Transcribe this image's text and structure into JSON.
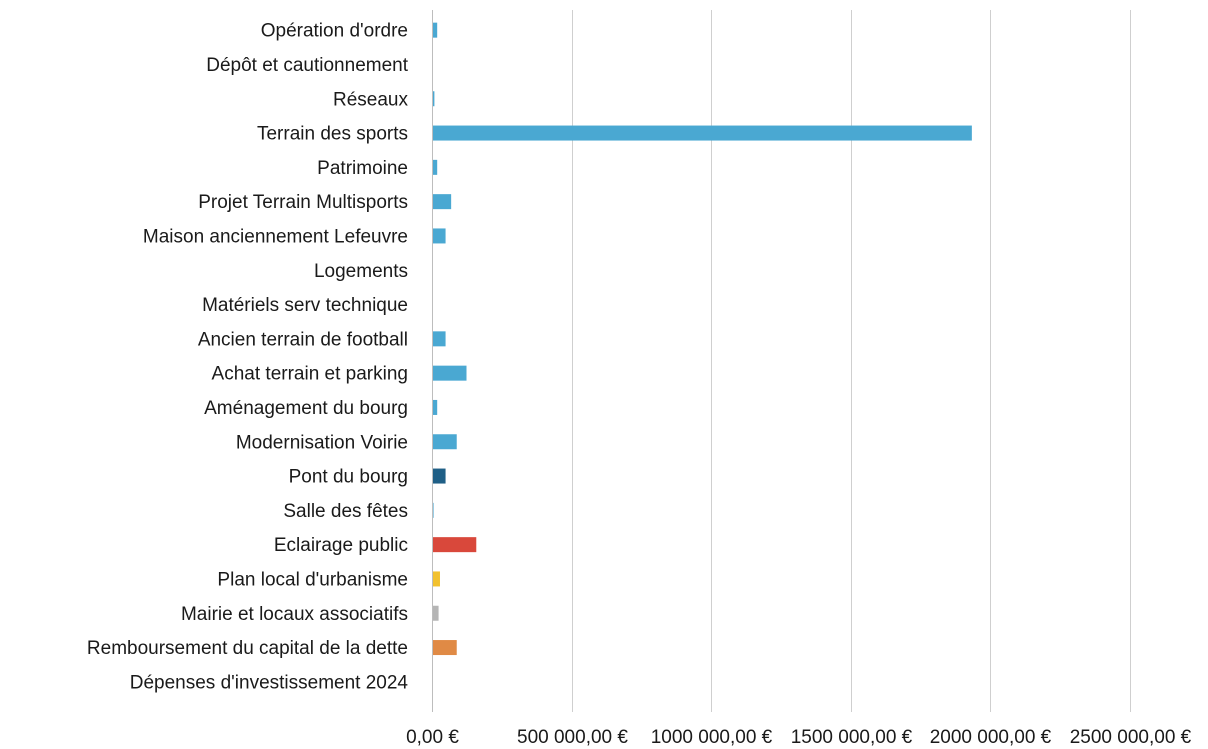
{
  "chart_data": {
    "type": "bar",
    "orientation": "horizontal",
    "categories": [
      "Opération d'ordre",
      "Dépôt et cautionnement",
      "Réseaux",
      "Terrain des sports",
      "Patrimoine",
      "Projet Terrain Multisports",
      "Maison anciennement Lefeuvre",
      "Logements",
      "Matériels serv technique",
      "Ancien terrain de football",
      "Achat terrain et parking",
      "Aménagement du bourg",
      "Modernisation Voirie",
      "Pont du bourg",
      "Salle des fêtes",
      "Eclairage public",
      "Plan local d'urbanisme",
      "Mairie et locaux associatifs",
      "Remboursement du capital de la dette",
      "Dépenses d'investissement 2024"
    ],
    "values": [
      15000,
      0,
      5000,
      1930000,
      15000,
      65000,
      45000,
      0,
      0,
      45000,
      120000,
      15000,
      85000,
      45000,
      2000,
      155000,
      25000,
      20000,
      85000,
      0
    ],
    "colors": [
      "#4aa8d2",
      "#4aa8d2",
      "#4aa8d2",
      "#4aa8d2",
      "#4aa8d2",
      "#4aa8d2",
      "#4aa8d2",
      "#4aa8d2",
      "#4aa8d2",
      "#4aa8d2",
      "#4aa8d2",
      "#4aa8d2",
      "#4aa8d2",
      "#1f5f86",
      "#4aa8d2",
      "#d9483b",
      "#f2c12e",
      "#b5b5b5",
      "#e08a45",
      "#4aa8d2"
    ],
    "xlim": [
      0,
      2500000
    ],
    "xticks": [
      0,
      500000,
      1000000,
      1500000,
      2000000,
      2500000
    ],
    "xtick_labels": [
      "0,00 €",
      "500 000,00 €",
      "1000 000,00 €",
      "1500 000,00 €",
      "2000 000,00 €",
      "2500 000,00 €"
    ],
    "grid": true,
    "legend": "none"
  }
}
